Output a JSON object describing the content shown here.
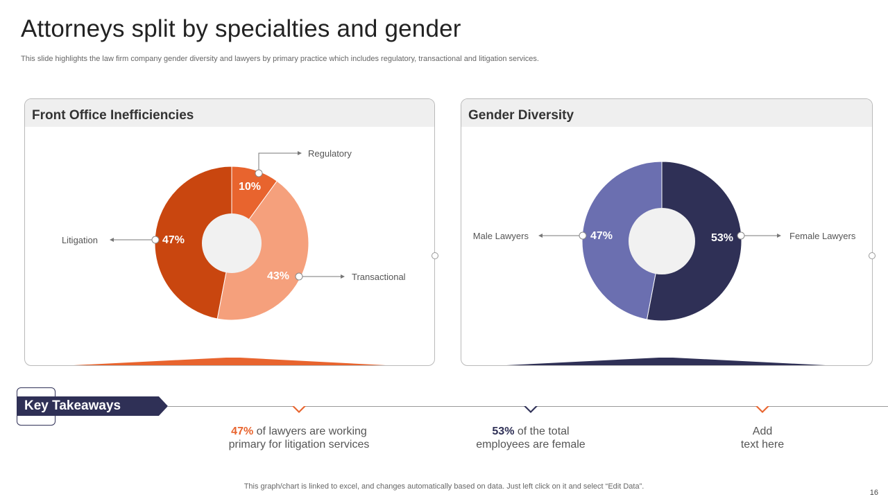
{
  "slide": {
    "title": "Attorneys split by specialties and gender",
    "subtitle": "This slide highlights the law firm company gender diversity and lawyers by primary practice which includes regulatory, transactional and litigation services.",
    "footer": "This graph/chart is linked to excel, and changes automatically based on data. Just left click on it and select “Edit Data”.",
    "page_number": "16"
  },
  "colors": {
    "orange_dark": "#c9460f",
    "orange_mid": "#e8642e",
    "orange_light": "#f5a07c",
    "navy": "#2f3056",
    "periwinkle": "#6b6fb0",
    "hole": "#f1f1f1"
  },
  "chart_data": [
    {
      "type": "pie",
      "variant": "donut",
      "title": "Front Office Inefficiencies",
      "categories": [
        "Regulatory",
        "Transactional",
        "Litigation"
      ],
      "values": [
        10,
        43,
        47
      ],
      "labels": [
        "10%",
        "43%",
        "47%"
      ],
      "colors": [
        "#e8642e",
        "#f5a07c",
        "#c9460f"
      ]
    },
    {
      "type": "pie",
      "variant": "donut",
      "title": "Gender Diversity",
      "categories": [
        "Female Lawyers",
        "Male Lawyers"
      ],
      "values": [
        53,
        47
      ],
      "labels": [
        "53%",
        "47%"
      ],
      "colors": [
        "#2f3056",
        "#6b6fb0"
      ]
    }
  ],
  "takeaways": {
    "heading": "Key Takeaways",
    "items": [
      {
        "highlight": "47%",
        "text_line1": " of lawyers  are working",
        "text_line2": "primary for litigation services",
        "color": "#e8642e"
      },
      {
        "highlight": "53%",
        "text_line1": " of the total",
        "text_line2": "employees are female",
        "color": "#2f3056"
      },
      {
        "highlight": "",
        "text_line1": "Add",
        "text_line2": "text here",
        "color": "#e8642e"
      }
    ]
  }
}
